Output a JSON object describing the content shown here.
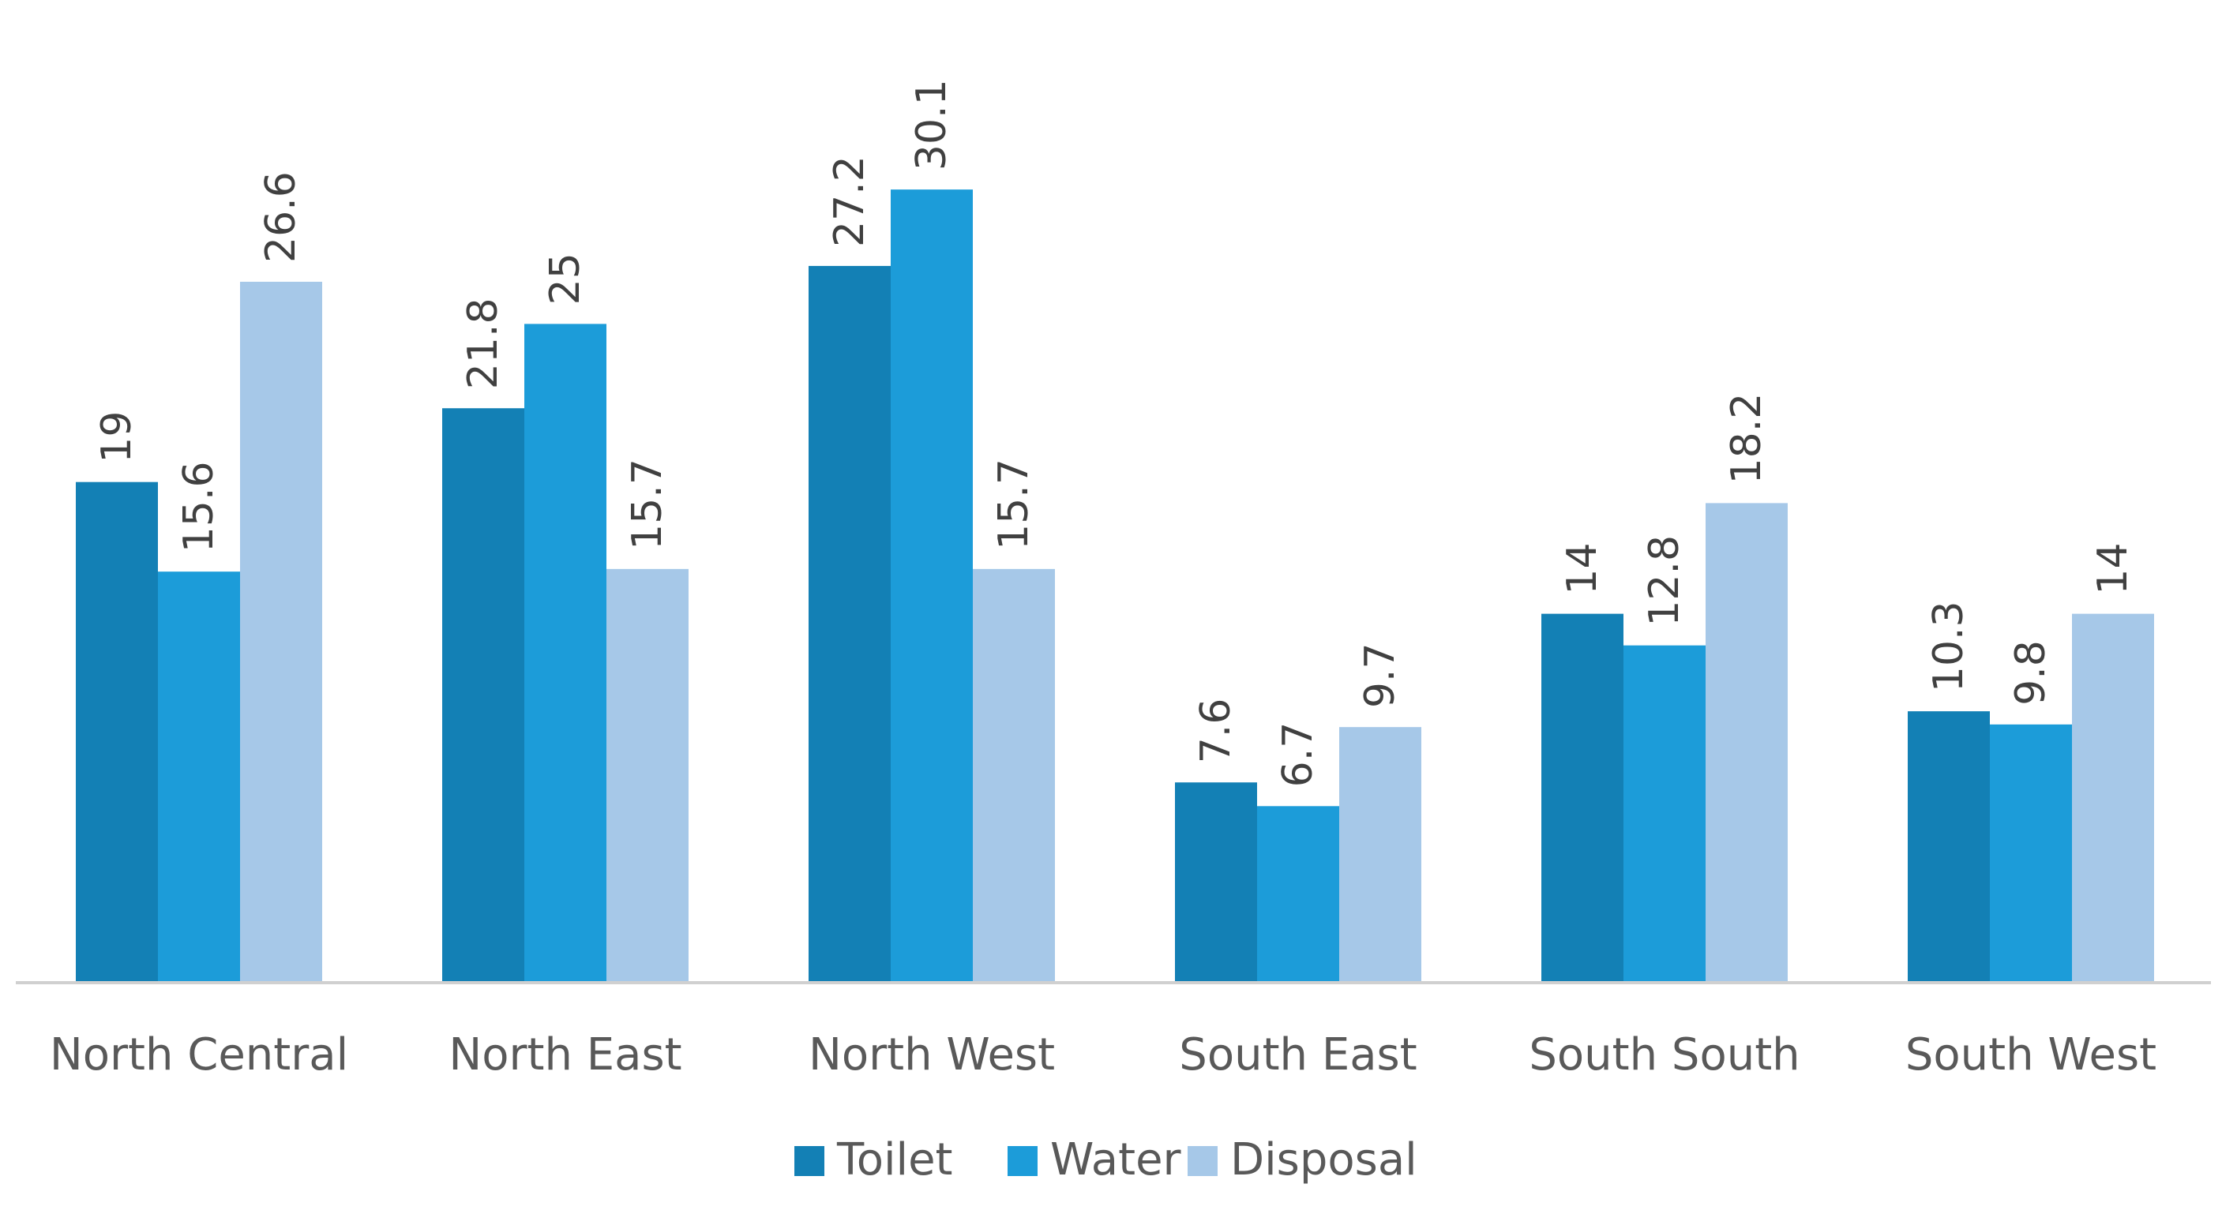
{
  "chart_data": {
    "type": "bar",
    "title": "",
    "xlabel": "",
    "ylabel": "",
    "ylim": [
      0,
      32.5
    ],
    "grid": false,
    "legend_position": "bottom",
    "categories": [
      "North Central",
      "North East",
      "North West",
      "South East",
      "South South",
      "South West"
    ],
    "series": [
      {
        "name": "Toilet",
        "color": "#1380b5",
        "values": [
          19,
          21.8,
          27.2,
          7.6,
          14,
          10.3
        ]
      },
      {
        "name": "Water",
        "color": "#1c9cd9",
        "values": [
          15.6,
          25,
          30.1,
          6.7,
          12.8,
          9.8
        ]
      },
      {
        "name": "Disposal",
        "color": "#a6c8e8",
        "values": [
          26.6,
          15.7,
          15.7,
          9.7,
          18.2,
          14
        ]
      }
    ]
  }
}
